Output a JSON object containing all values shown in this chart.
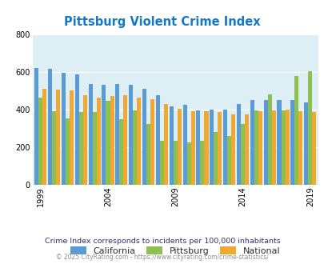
{
  "title": "Pittsburg Violent Crime Index",
  "years": [
    1999,
    2000,
    2001,
    2002,
    2003,
    2004,
    2005,
    2006,
    2007,
    2008,
    2009,
    2010,
    2011,
    2012,
    2013,
    2014,
    2015,
    2016,
    2017,
    2018,
    2019
  ],
  "pittsburg": [
    465,
    390,
    355,
    385,
    385,
    445,
    350,
    395,
    325,
    235,
    235,
    225,
    235,
    280,
    260,
    325,
    395,
    480,
    395,
    580,
    605
  ],
  "california": [
    620,
    615,
    595,
    585,
    535,
    530,
    535,
    530,
    510,
    475,
    415,
    425,
    395,
    400,
    400,
    430,
    450,
    450,
    450,
    450,
    440
  ],
  "national": [
    510,
    505,
    500,
    475,
    465,
    470,
    475,
    465,
    455,
    430,
    405,
    390,
    390,
    385,
    375,
    375,
    390,
    395,
    400,
    390,
    385
  ],
  "pittsburg_color": "#8dc050",
  "california_color": "#5b9bd5",
  "national_color": "#f0a830",
  "background_color": "#ddeef5",
  "fig_background": "#ffffff",
  "ylim": [
    0,
    800
  ],
  "yticks": [
    0,
    200,
    400,
    600,
    800
  ],
  "xtick_years": [
    1999,
    2004,
    2009,
    2014,
    2019
  ],
  "legend_labels": [
    "Pittsburg",
    "California",
    "National"
  ],
  "footnote1": "Crime Index corresponds to incidents per 100,000 inhabitants",
  "footnote2": "© 2025 CityRating.com - https://www.cityrating.com/crime-statistics/",
  "title_color": "#1478c8",
  "footnote1_color": "#303070",
  "footnote2_color": "#909090",
  "grid_color": "#ffffff"
}
